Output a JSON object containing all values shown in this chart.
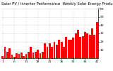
{
  "title": "Weekly Solar Energy Production Value",
  "subtitle": "Solar PV / Inverter Performance",
  "bar_color": "#ff0000",
  "background_color": "#ffffff",
  "plot_bg_color": "#ffffff",
  "grid_color": "#aaaaaa",
  "ylim": [
    0,
    60
  ],
  "ytick_values": [
    10,
    20,
    30,
    40,
    50,
    60
  ],
  "values": [
    3,
    14,
    8,
    12,
    4,
    2,
    6,
    5,
    7,
    3,
    5,
    8,
    14,
    7,
    8,
    10,
    6,
    8,
    18,
    14,
    18,
    14,
    20,
    16,
    22,
    20,
    14,
    26,
    22,
    22,
    25,
    30,
    34,
    26,
    27,
    32,
    30,
    28,
    36,
    28,
    44
  ],
  "title_fontsize": 3.8,
  "tick_fontsize": 3.2,
  "bar_width": 0.85
}
